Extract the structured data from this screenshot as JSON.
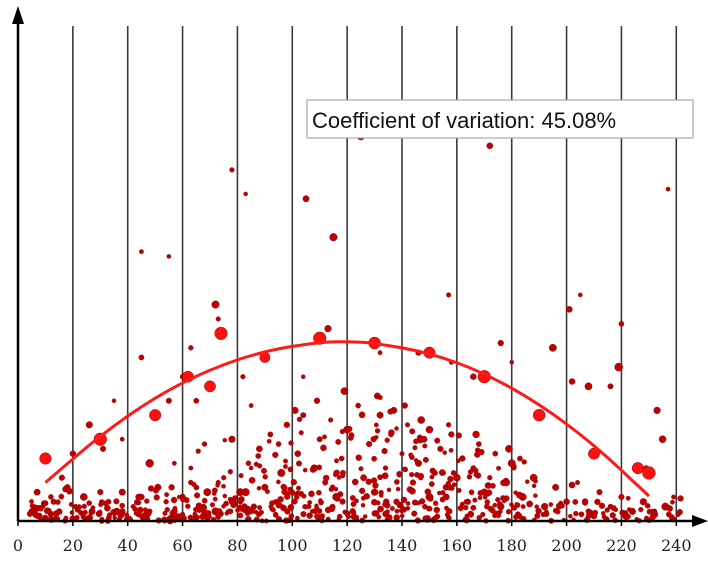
{
  "chart_data": {
    "type": "scatter",
    "title": "",
    "xlabel": "",
    "ylabel": "",
    "xlim": [
      0,
      245
    ],
    "ylim": [
      0,
      100
    ],
    "x_ticks": [
      0,
      20,
      40,
      60,
      80,
      100,
      120,
      140,
      160,
      180,
      200,
      220,
      240
    ],
    "x_tick_labels": [
      "0",
      "20",
      "40",
      "60",
      "80",
      "100",
      "120",
      "140",
      "160",
      "180",
      "200",
      "220",
      "240"
    ],
    "vertical_gridlines": [
      20,
      40,
      60,
      80,
      100,
      120,
      140,
      160,
      180,
      200,
      220,
      240
    ],
    "y_ticks_shown": false,
    "grid": "vertical-only",
    "annotation": "Coefficient of variation: 45.08%",
    "series": [
      {
        "kind": "dense-scatter",
        "color": "#c00000",
        "points": [
          [
            5,
            2
          ],
          [
            7,
            6
          ],
          [
            9,
            3
          ],
          [
            12,
            5
          ],
          [
            15,
            2
          ],
          [
            18,
            7
          ],
          [
            21,
            3
          ],
          [
            24,
            5
          ],
          [
            27,
            2
          ],
          [
            30,
            6
          ],
          [
            33,
            4
          ],
          [
            36,
            2
          ],
          [
            38,
            6
          ],
          [
            42,
            3
          ],
          [
            45,
            5
          ],
          [
            48,
            2
          ],
          [
            51,
            7
          ],
          [
            54,
            4
          ],
          [
            57,
            2
          ],
          [
            60,
            5
          ],
          [
            63,
            8
          ],
          [
            66,
            3
          ],
          [
            69,
            6
          ],
          [
            72,
            2
          ],
          [
            75,
            9
          ],
          [
            78,
            4
          ],
          [
            81,
            6
          ],
          [
            84,
            12
          ],
          [
            86,
            3
          ],
          [
            88,
            15
          ],
          [
            90,
            7
          ],
          [
            92,
            18
          ],
          [
            94,
            4
          ],
          [
            96,
            10
          ],
          [
            98,
            20
          ],
          [
            100,
            6
          ],
          [
            102,
            14
          ],
          [
            104,
            22
          ],
          [
            106,
            3
          ],
          [
            108,
            11
          ],
          [
            110,
            17
          ],
          [
            112,
            8
          ],
          [
            114,
            21
          ],
          [
            116,
            5
          ],
          [
            118,
            13
          ],
          [
            120,
            19
          ],
          [
            122,
            2
          ],
          [
            124,
            24
          ],
          [
            126,
            9
          ],
          [
            128,
            16
          ],
          [
            130,
            6
          ],
          [
            132,
            22
          ],
          [
            134,
            11
          ],
          [
            136,
            18
          ],
          [
            138,
            4
          ],
          [
            140,
            14
          ],
          [
            142,
            20
          ],
          [
            144,
            8
          ],
          [
            146,
            12
          ],
          [
            148,
            17
          ],
          [
            150,
            5
          ],
          [
            152,
            10
          ],
          [
            154,
            15
          ],
          [
            156,
            7
          ],
          [
            158,
            18
          ],
          [
            160,
            9
          ],
          [
            162,
            13
          ],
          [
            164,
            4
          ],
          [
            166,
            11
          ],
          [
            168,
            16
          ],
          [
            170,
            6
          ],
          [
            172,
            9
          ],
          [
            174,
            14
          ],
          [
            176,
            3
          ],
          [
            178,
            8
          ],
          [
            180,
            12
          ],
          [
            184,
            5
          ],
          [
            188,
            9
          ],
          [
            192,
            3
          ],
          [
            196,
            7
          ],
          [
            200,
            4
          ],
          [
            204,
            8
          ],
          [
            208,
            2
          ],
          [
            212,
            6
          ],
          [
            216,
            3
          ],
          [
            220,
            5
          ],
          [
            224,
            2
          ],
          [
            228,
            4
          ],
          [
            232,
            2
          ],
          [
            236,
            3
          ],
          [
            239,
            5
          ],
          [
            13,
            4
          ],
          [
            44,
            5
          ],
          [
            56,
            7
          ],
          [
            73,
            8
          ],
          [
            83,
            6
          ],
          [
            109,
            25
          ],
          [
            119,
            27
          ],
          [
            131,
            26
          ],
          [
            141,
            24
          ],
          [
            157,
            20
          ],
          [
            167,
            18
          ],
          [
            179,
            15
          ],
          [
            183,
            13
          ],
          [
            63,
            11
          ],
          [
            68,
            16
          ],
          [
            78,
            17
          ],
          [
            101,
            23
          ],
          [
            137,
            23
          ],
          [
            147,
            21
          ],
          [
            95,
            16
          ],
          [
            150,
            19
          ]
        ]
      },
      {
        "kind": "outliers",
        "color": "#c00000",
        "points": [
          [
            78,
            73
          ],
          [
            83,
            68
          ],
          [
            45,
            56
          ],
          [
            55,
            55
          ],
          [
            105,
            67
          ],
          [
            115,
            59
          ],
          [
            125,
            80
          ],
          [
            157,
            47
          ],
          [
            172,
            78
          ],
          [
            205,
            47
          ],
          [
            220,
            41
          ],
          [
            201,
            44
          ],
          [
            237,
            69
          ],
          [
            55,
            25
          ],
          [
            60,
            30
          ],
          [
            65,
            25
          ],
          [
            72,
            45
          ],
          [
            73,
            42
          ],
          [
            82,
            30
          ],
          [
            104,
            30
          ],
          [
            113,
            40
          ],
          [
            132,
            35
          ],
          [
            146,
            35
          ],
          [
            158,
            33
          ],
          [
            166,
            30
          ],
          [
            176,
            37
          ],
          [
            180,
            33
          ],
          [
            195,
            36
          ],
          [
            202,
            29
          ],
          [
            208,
            28
          ],
          [
            216,
            28
          ],
          [
            219,
            32
          ],
          [
            235,
            17
          ],
          [
            233,
            23
          ],
          [
            229,
            11
          ],
          [
            31,
            15
          ],
          [
            38,
            17
          ],
          [
            48,
            12
          ],
          [
            57,
            12
          ],
          [
            85,
            24
          ],
          [
            63,
            36
          ],
          [
            45,
            34
          ],
          [
            35,
            25
          ],
          [
            26,
            20
          ],
          [
            20,
            14
          ],
          [
            16,
            9
          ]
        ]
      },
      {
        "kind": "highlighted",
        "color": "#ff1010",
        "points": [
          [
            10,
            13
          ],
          [
            30,
            17
          ],
          [
            50,
            22
          ],
          [
            70,
            28
          ],
          [
            90,
            34
          ],
          [
            110,
            38
          ],
          [
            130,
            37
          ],
          [
            150,
            35
          ],
          [
            170,
            30
          ],
          [
            190,
            22
          ],
          [
            210,
            14
          ],
          [
            230,
            10
          ],
          [
            74,
            39
          ],
          [
            62,
            30
          ],
          [
            226,
            11
          ]
        ]
      },
      {
        "kind": "fit-curve",
        "name": "",
        "color": "#ff1a1a",
        "x": [
          10,
          30,
          50,
          70,
          90,
          110,
          120,
          130,
          150,
          170,
          190,
          210,
          230
        ],
        "y": [
          8,
          17.8,
          25.8,
          31.6,
          35.4,
          37.2,
          37.3,
          37.0,
          35.0,
          30.8,
          24.4,
          15.9,
          5.2
        ]
      }
    ]
  }
}
